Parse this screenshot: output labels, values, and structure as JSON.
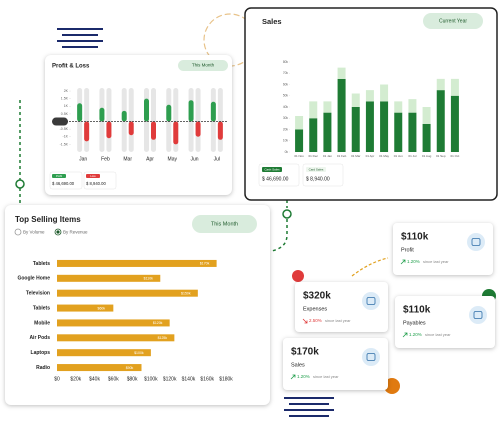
{
  "chart_data": [
    {
      "type": "bar",
      "title": "Profit & Loss",
      "dropdown": "This Month",
      "categories": [
        "Jan",
        "Feb",
        "Mar",
        "Apr",
        "May",
        "Jun",
        "Jul"
      ],
      "series": [
        {
          "name": "Profit",
          "color": "#2e9e4f",
          "values": [
            1200,
            900,
            700,
            1500,
            1100,
            1400,
            1300
          ]
        },
        {
          "name": "Loss",
          "color": "#e03b3b",
          "values": [
            -1300,
            -1100,
            -900,
            -1200,
            -1500,
            -1000,
            -1200
          ]
        }
      ],
      "badge_values": [
        "$ 46,690.00",
        "$ 8,940.00"
      ],
      "ylim": [
        -2000,
        2200
      ],
      "yticks": [
        {
          "value": 2000,
          "label": "2K"
        },
        {
          "value": 1500,
          "label": "1.5K"
        },
        {
          "value": 1000,
          "label": "1K"
        },
        {
          "value": 500,
          "label": "0.5K"
        },
        0,
        {
          "value": -500,
          "label": "-0.5K"
        },
        {
          "value": -1000,
          "label": "-1K"
        },
        {
          "value": -1500,
          "label": "-1.5K"
        }
      ]
    },
    {
      "type": "stacked-bar",
      "title": "Sales",
      "dropdown": "Current Year",
      "categories": [
        "01 Nov",
        "01 Dec",
        "01 Jan",
        "01 Feb",
        "01 Mar",
        "01 Apr",
        "01 May",
        "01 Jun",
        "01 Jul",
        "01 Aug",
        "01 Sep",
        "01 Oct"
      ],
      "series": [
        {
          "name": "Cash Sales",
          "color": "#1e7b34",
          "values": [
            20000,
            30000,
            35000,
            65000,
            40000,
            45000,
            45000,
            35000,
            35000,
            25000,
            55000,
            50000
          ]
        },
        {
          "name": "Card Sales",
          "color": "#d3ecd0",
          "values": [
            12000,
            15000,
            10000,
            10000,
            12000,
            10000,
            15000,
            10000,
            12000,
            15000,
            10000,
            15000
          ]
        }
      ],
      "badge_values": [
        "$ 46,690.00",
        "$ 8,940.00"
      ],
      "ylim": [
        0,
        80000
      ],
      "yticks": [
        {
          "value": 0,
          "label": "0k"
        },
        {
          "value": 10000,
          "label": "10k"
        },
        {
          "value": 20000,
          "label": "20k"
        },
        {
          "value": 30000,
          "label": "30k"
        },
        {
          "value": 40000,
          "label": "40k"
        },
        {
          "value": 50000,
          "label": "50k"
        },
        {
          "value": 60000,
          "label": "60k"
        },
        {
          "value": 70000,
          "label": "70k"
        },
        {
          "value": 80000,
          "label": "80k"
        }
      ]
    },
    {
      "type": "hbar",
      "title": "Top Selling Items",
      "dropdown": "This Month",
      "options": [
        "By Volume",
        "By Revenue"
      ],
      "categories": [
        "Tablets",
        "Google Home",
        "Television",
        "Tablets",
        "Mobile",
        "Air Pods",
        "Laptops",
        "Radio"
      ],
      "values": [
        170000,
        110000,
        150000,
        60000,
        120000,
        125000,
        100000,
        90000
      ],
      "value_labels": [
        "$170k",
        "$110k",
        "$150k",
        "$60k",
        "$120k",
        "$125k",
        "$100k",
        "$90k"
      ],
      "color": "#e2a11f",
      "xlim": [
        0,
        180000
      ],
      "xticks": [
        {
          "value": 0,
          "label": "$0"
        },
        {
          "value": 20000,
          "label": "$20k"
        },
        {
          "value": 40000,
          "label": "$40k"
        },
        {
          "value": 60000,
          "label": "$60k"
        },
        {
          "value": 80000,
          "label": "$80k"
        },
        {
          "value": 100000,
          "label": "$100k"
        },
        {
          "value": 120000,
          "label": "$120k"
        },
        {
          "value": 140000,
          "label": "$140k"
        },
        {
          "value": 160000,
          "label": "$160k"
        },
        {
          "value": 180000,
          "label": "$180k"
        }
      ]
    }
  ],
  "cards": [
    {
      "amount": "$110k",
      "label": "Profit",
      "change": "1.20%",
      "note": "since last year",
      "trend": "up"
    },
    {
      "amount": "$320k",
      "label": "Expenses",
      "change": "2.50%",
      "note": "since last year",
      "trend": "down"
    },
    {
      "amount": "$110k",
      "label": "Payables",
      "change": "1.20%",
      "note": "since last year",
      "trend": "up"
    },
    {
      "amount": "$170k",
      "label": "Sales",
      "change": "1.20%",
      "note": "since last year",
      "trend": "up"
    }
  ]
}
